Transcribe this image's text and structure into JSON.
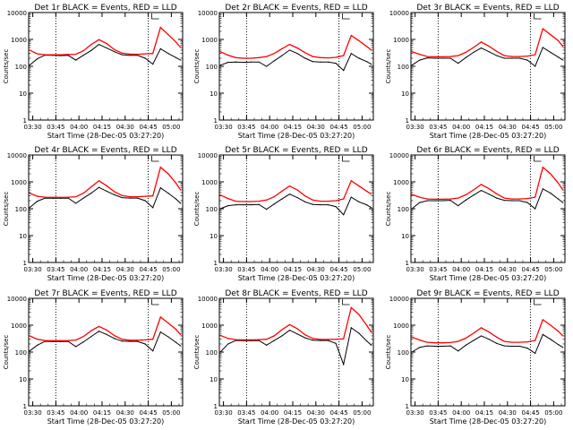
{
  "title_suffix": "BLACK = Events, RED = LLD",
  "xlabel": "Start Time (28-Dec-05 03:27:20)",
  "ylabel": "Counts/sec",
  "x_ticks": [
    "03:30",
    "03:45",
    "04:00",
    "04:15",
    "04:30",
    "04:45",
    "05:00"
  ],
  "y_ticks": [
    "1",
    "10",
    "100",
    "1000",
    "10000"
  ],
  "colors": {
    "events": "#000000",
    "lld": "#ff0000",
    "axis": "#000000"
  },
  "chart_data": [
    {
      "type": "line",
      "title": "Det 1r BLACK = Events, RED = LLD",
      "xlabel": "Start Time (28-Dec-05 03:27:20)",
      "ylabel": "Counts/sec",
      "yscale": "log",
      "ylim": [
        1,
        10000
      ],
      "xlim": [
        "03:27:20",
        "05:07:20"
      ],
      "vlines": [
        "03:45",
        "04:45"
      ],
      "x": [
        "03:28",
        "03:33",
        "03:38",
        "03:43",
        "03:48",
        "03:53",
        "03:58",
        "04:03",
        "04:08",
        "04:13",
        "04:18",
        "04:23",
        "04:28",
        "04:33",
        "04:38",
        "04:43",
        "04:48",
        "04:53",
        "04:58",
        "05:03",
        "05:06"
      ],
      "series": [
        {
          "name": "Events",
          "values": [
            110,
            190,
            260,
            255,
            250,
            255,
            170,
            260,
            390,
            650,
            480,
            350,
            270,
            255,
            260,
            200,
            120,
            450,
            300,
            210,
            170
          ]
        },
        {
          "name": "LLD",
          "values": [
            400,
            290,
            270,
            270,
            270,
            275,
            280,
            380,
            650,
            980,
            700,
            420,
            310,
            285,
            280,
            290,
            300,
            2800,
            1500,
            800,
            500
          ]
        }
      ]
    },
    {
      "type": "line",
      "title": "Det 2r BLACK = Events, RED = LLD",
      "xlabel": "Start Time (28-Dec-05 03:27:20)",
      "ylabel": "Counts/sec",
      "yscale": "log",
      "ylim": [
        1,
        10000
      ],
      "xlim": [
        "03:27:20",
        "05:07:20"
      ],
      "vlines": [
        "03:45",
        "04:45"
      ],
      "x": [
        "03:28",
        "03:33",
        "03:38",
        "03:43",
        "03:48",
        "03:53",
        "03:58",
        "04:03",
        "04:08",
        "04:13",
        "04:18",
        "04:23",
        "04:28",
        "04:33",
        "04:38",
        "04:43",
        "04:48",
        "04:53",
        "04:58",
        "05:03",
        "05:06"
      ],
      "series": [
        {
          "name": "Events",
          "values": [
            110,
            140,
            145,
            140,
            145,
            145,
            100,
            160,
            250,
            400,
            300,
            200,
            150,
            145,
            145,
            130,
            70,
            300,
            200,
            150,
            120
          ]
        },
        {
          "name": "LLD",
          "values": [
            350,
            260,
            210,
            200,
            200,
            210,
            230,
            300,
            450,
            650,
            480,
            320,
            230,
            210,
            205,
            215,
            250,
            1400,
            900,
            550,
            400
          ]
        }
      ]
    },
    {
      "type": "line",
      "title": "Det 3r BLACK = Events, RED = LLD",
      "xlabel": "Start Time (28-Dec-05 03:27:20)",
      "ylabel": "Counts/sec",
      "yscale": "log",
      "ylim": [
        1,
        10000
      ],
      "xlim": [
        "03:27:20",
        "05:07:20"
      ],
      "vlines": [
        "03:45",
        "04:45"
      ],
      "x": [
        "03:28",
        "03:33",
        "03:38",
        "03:43",
        "03:48",
        "03:53",
        "03:58",
        "04:03",
        "04:08",
        "04:13",
        "04:18",
        "04:23",
        "04:28",
        "04:33",
        "04:38",
        "04:43",
        "04:48",
        "04:53",
        "04:58",
        "05:03",
        "05:06"
      ],
      "series": [
        {
          "name": "Events",
          "values": [
            110,
            170,
            205,
            200,
            200,
            200,
            130,
            210,
            330,
            480,
            350,
            250,
            200,
            200,
            200,
            170,
            100,
            500,
            330,
            220,
            170
          ]
        },
        {
          "name": "LLD",
          "values": [
            350,
            280,
            230,
            225,
            225,
            230,
            250,
            330,
            500,
            800,
            560,
            360,
            250,
            230,
            230,
            240,
            270,
            2500,
            1500,
            900,
            550
          ]
        }
      ]
    },
    {
      "type": "line",
      "title": "Det 4r BLACK = Events, RED = LLD",
      "xlabel": "Start Time (28-Dec-05 03:27:20)",
      "ylabel": "Counts/sec",
      "yscale": "log",
      "ylim": [
        1,
        10000
      ],
      "xlim": [
        "03:27:20",
        "05:07:20"
      ],
      "vlines": [
        "03:45",
        "04:45"
      ],
      "x": [
        "03:28",
        "03:33",
        "03:38",
        "03:43",
        "03:48",
        "03:53",
        "03:58",
        "04:03",
        "04:08",
        "04:13",
        "04:18",
        "04:23",
        "04:28",
        "04:33",
        "04:38",
        "04:43",
        "04:48",
        "04:53",
        "04:58",
        "05:03",
        "05:06"
      ],
      "series": [
        {
          "name": "Events",
          "values": [
            110,
            190,
            250,
            245,
            245,
            250,
            160,
            250,
            380,
            620,
            450,
            330,
            260,
            250,
            250,
            200,
            110,
            600,
            380,
            230,
            160
          ]
        },
        {
          "name": "LLD",
          "values": [
            380,
            290,
            270,
            265,
            265,
            270,
            280,
            380,
            650,
            1100,
            720,
            430,
            310,
            280,
            280,
            290,
            300,
            3500,
            2000,
            900,
            500
          ]
        }
      ]
    },
    {
      "type": "line",
      "title": "Det 5r BLACK = Events, RED = LLD",
      "xlabel": "Start Time (28-Dec-05 03:27:20)",
      "ylabel": "Counts/sec",
      "yscale": "log",
      "ylim": [
        1,
        10000
      ],
      "xlim": [
        "03:27:20",
        "05:07:20"
      ],
      "vlines": [
        "03:45",
        "04:45"
      ],
      "x": [
        "03:28",
        "03:33",
        "03:38",
        "03:43",
        "03:48",
        "03:53",
        "03:58",
        "04:03",
        "04:08",
        "04:13",
        "04:18",
        "04:23",
        "04:28",
        "04:33",
        "04:38",
        "04:43",
        "04:48",
        "04:53",
        "04:58",
        "05:03",
        "05:06"
      ],
      "series": [
        {
          "name": "Events",
          "values": [
            100,
            130,
            140,
            140,
            140,
            145,
            95,
            150,
            230,
            350,
            260,
            180,
            145,
            140,
            140,
            120,
            60,
            270,
            180,
            140,
            110
          ]
        },
        {
          "name": "LLD",
          "values": [
            320,
            240,
            190,
            185,
            185,
            190,
            210,
            280,
            450,
            700,
            500,
            300,
            210,
            190,
            190,
            200,
            230,
            1100,
            700,
            450,
            350
          ]
        }
      ]
    },
    {
      "type": "line",
      "title": "Det 6r BLACK = Events, RED = LLD",
      "xlabel": "Start Time (28-Dec-05 03:27:20)",
      "ylabel": "Counts/sec",
      "yscale": "log",
      "ylim": [
        1,
        10000
      ],
      "xlim": [
        "03:27:20",
        "05:07:20"
      ],
      "vlines": [
        "03:45",
        "04:45"
      ],
      "x": [
        "03:28",
        "03:33",
        "03:38",
        "03:43",
        "03:48",
        "03:53",
        "03:58",
        "04:03",
        "04:08",
        "04:13",
        "04:18",
        "04:23",
        "04:28",
        "04:33",
        "04:38",
        "04:43",
        "04:48",
        "04:53",
        "04:58",
        "05:03",
        "05:06"
      ],
      "series": [
        {
          "name": "Events",
          "values": [
            100,
            170,
            200,
            200,
            200,
            205,
            130,
            210,
            320,
            480,
            350,
            250,
            205,
            200,
            200,
            170,
            100,
            550,
            380,
            230,
            170
          ]
        },
        {
          "name": "LLD",
          "values": [
            340,
            270,
            230,
            225,
            225,
            230,
            250,
            330,
            500,
            800,
            560,
            360,
            250,
            230,
            230,
            240,
            270,
            3500,
            2000,
            900,
            500
          ]
        }
      ]
    },
    {
      "type": "line",
      "title": "Det 7r BLACK = Events, RED = LLD",
      "xlabel": "Start Time (28-Dec-05 03:27:20)",
      "ylabel": "Counts/sec",
      "yscale": "log",
      "ylim": [
        1,
        10000
      ],
      "xlim": [
        "03:27:20",
        "05:07:20"
      ],
      "vlines": [
        "03:45",
        "04:45"
      ],
      "x": [
        "03:28",
        "03:33",
        "03:38",
        "03:43",
        "03:48",
        "03:53",
        "03:58",
        "04:03",
        "04:08",
        "04:13",
        "04:18",
        "04:23",
        "04:28",
        "04:33",
        "04:38",
        "04:43",
        "04:48",
        "04:53",
        "04:58",
        "05:03",
        "05:06"
      ],
      "series": [
        {
          "name": "Events",
          "values": [
            110,
            180,
            250,
            245,
            245,
            250,
            160,
            240,
            380,
            600,
            450,
            320,
            255,
            250,
            250,
            200,
            110,
            560,
            370,
            230,
            170
          ]
        },
        {
          "name": "LLD",
          "values": [
            400,
            300,
            270,
            265,
            265,
            270,
            280,
            380,
            620,
            900,
            660,
            410,
            300,
            275,
            275,
            285,
            300,
            2000,
            1200,
            700,
            450
          ]
        }
      ]
    },
    {
      "type": "line",
      "title": "Det 8r BLACK = Events, RED = LLD",
      "xlabel": "Start Time (28-Dec-05 03:27:20)",
      "ylabel": "Counts/sec",
      "yscale": "log",
      "ylim": [
        1,
        10000
      ],
      "xlim": [
        "03:27:20",
        "05:07:20"
      ],
      "vlines": [
        "03:45",
        "04:45"
      ],
      "x": [
        "03:28",
        "03:33",
        "03:38",
        "03:43",
        "03:48",
        "03:53",
        "03:58",
        "04:03",
        "04:08",
        "04:13",
        "04:18",
        "04:23",
        "04:28",
        "04:33",
        "04:38",
        "04:43",
        "04:48",
        "04:53",
        "04:58",
        "05:03",
        "05:06"
      ],
      "series": [
        {
          "name": "Events",
          "values": [
            100,
            200,
            270,
            265,
            265,
            270,
            180,
            270,
            400,
            650,
            470,
            340,
            275,
            270,
            270,
            210,
            35,
            800,
            500,
            260,
            180
          ]
        },
        {
          "name": "LLD",
          "values": [
            420,
            320,
            290,
            285,
            285,
            290,
            300,
            400,
            680,
            1050,
            740,
            440,
            320,
            295,
            295,
            300,
            310,
            4500,
            2500,
            1000,
            550
          ]
        }
      ]
    },
    {
      "type": "line",
      "title": "Det 9r BLACK = Events, RED = LLD",
      "xlabel": "Start Time (28-Dec-05 03:27:20)",
      "ylabel": "Counts/sec",
      "yscale": "log",
      "ylim": [
        1,
        10000
      ],
      "xlim": [
        "03:27:20",
        "05:07:20"
      ],
      "vlines": [
        "03:45",
        "04:45"
      ],
      "x": [
        "03:28",
        "03:33",
        "03:38",
        "03:43",
        "03:48",
        "03:53",
        "03:58",
        "04:03",
        "04:08",
        "04:13",
        "04:18",
        "04:23",
        "04:28",
        "04:33",
        "04:38",
        "04:43",
        "04:48",
        "04:53",
        "04:58",
        "05:03",
        "05:06"
      ],
      "series": [
        {
          "name": "Events",
          "values": [
            100,
            150,
            170,
            165,
            165,
            170,
            110,
            180,
            270,
            400,
            300,
            210,
            170,
            165,
            165,
            140,
            90,
            450,
            300,
            190,
            150
          ]
        },
        {
          "name": "LLD",
          "values": [
            360,
            280,
            230,
            220,
            220,
            225,
            250,
            330,
            500,
            800,
            560,
            360,
            250,
            230,
            230,
            240,
            270,
            1600,
            1000,
            600,
            400
          ]
        }
      ]
    }
  ]
}
